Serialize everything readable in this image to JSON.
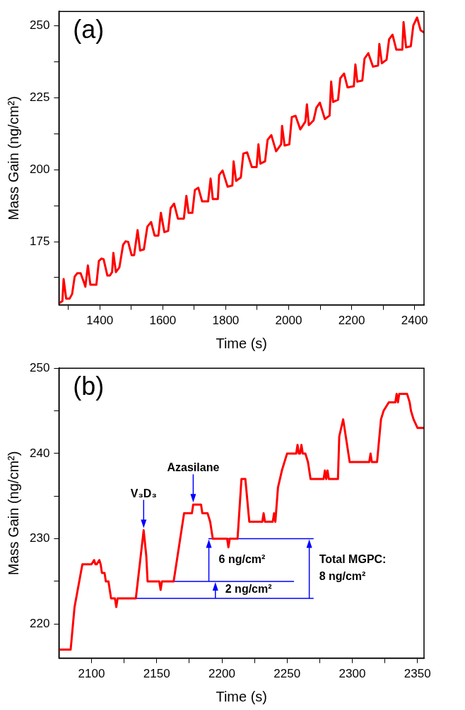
{
  "chart_data": [
    {
      "type": "line",
      "title": "(a)",
      "xlabel": "Time (s)",
      "ylabel": "Mass Gain (ng/cm²)",
      "xlim": [
        1270,
        2430
      ],
      "ylim": [
        153,
        255
      ],
      "xticks": [
        {
          "value": 1300,
          "label": null
        },
        1400,
        {
          "value": 1500,
          "label": null
        },
        1600,
        {
          "value": 1700,
          "label": null
        },
        1800,
        {
          "value": 1900,
          "label": null
        },
        2000,
        {
          "value": 2100,
          "label": null
        },
        2200,
        {
          "value": 2300,
          "label": null
        },
        2400
      ],
      "yticks": [
        {
          "value": 162.5,
          "label": null
        },
        175,
        {
          "value": 187.5,
          "label": null
        },
        200,
        {
          "value": 212.5,
          "label": null
        },
        225,
        {
          "value": 237.5,
          "label": null
        },
        250
      ],
      "grid": false,
      "legend": false,
      "marker": "none",
      "line_style": "solid",
      "series": [
        {
          "color": "#ff0000",
          "x": [
            1270,
            1281,
            1285,
            1293,
            1304,
            1312,
            1320,
            1328,
            1339,
            1351,
            1354,
            1362,
            1370,
            1389,
            1397,
            1405,
            1412,
            1424,
            1432,
            1439,
            1443,
            1451,
            1462,
            1474,
            1482,
            1490,
            1501,
            1509,
            1520,
            1528,
            1540,
            1551,
            1563,
            1574,
            1586,
            1594,
            1605,
            1617,
            1625,
            1636,
            1648,
            1667,
            1675,
            1682,
            1694,
            1702,
            1713,
            1725,
            1744,
            1752,
            1759,
            1775,
            1779,
            1790,
            1806,
            1821,
            1825,
            1833,
            1848,
            1856,
            1868,
            1883,
            1898,
            1904,
            1910,
            1925,
            1933,
            1945,
            1960,
            1976,
            1979,
            1987,
            2002,
            2010,
            2022,
            2037,
            2053,
            2058,
            2064,
            2079,
            2088,
            2099,
            2115,
            2130,
            2135,
            2141,
            2157,
            2164,
            2176,
            2187,
            2207,
            2212,
            2218,
            2234,
            2241,
            2253,
            2268,
            2284,
            2288,
            2296,
            2311,
            2319,
            2330,
            2342,
            2361,
            2365,
            2373,
            2388,
            2396,
            2408,
            2419,
            2430
          ],
          "values": [
            153.6,
            154.3,
            162,
            155.2,
            155.2,
            156.8,
            162.8,
            164,
            164,
            160.4,
            159.3,
            166.7,
            160,
            160,
            168.3,
            169.1,
            168.9,
            163.2,
            163.2,
            164.4,
            171.1,
            164.4,
            166,
            173.9,
            175.1,
            174.9,
            170.3,
            170.3,
            179,
            171.9,
            172.3,
            180.2,
            181.8,
            177.1,
            177.1,
            185,
            178.3,
            178.7,
            186.6,
            188.2,
            183,
            183,
            190.9,
            185,
            185,
            192.9,
            193.7,
            189,
            189,
            196.9,
            189.8,
            189.8,
            198.1,
            199.7,
            194.1,
            194.5,
            202.9,
            196.1,
            197.3,
            205.6,
            206,
            200.9,
            200.9,
            208.8,
            202.1,
            202.9,
            210.4,
            212,
            206.4,
            208.8,
            215.2,
            208.4,
            208.8,
            218.3,
            218.7,
            214,
            216.7,
            222.7,
            215.5,
            217.1,
            221.5,
            223.3,
            217.6,
            218.8,
            230.6,
            223.5,
            224.3,
            231.8,
            233.4,
            228.6,
            229,
            236.6,
            230.6,
            231,
            238.6,
            240.5,
            235.8,
            236.2,
            243.7,
            237,
            238.2,
            245.3,
            246.9,
            241.7,
            241.7,
            251.3,
            242.5,
            242.9,
            250.1,
            252.9,
            248.5,
            247.7
          ]
        }
      ]
    },
    {
      "type": "line",
      "title": "(b)",
      "xlabel": "Time (s)",
      "ylabel": "Mass Gain (ng/cm²)",
      "xlim": [
        2075,
        2355
      ],
      "ylim": [
        216,
        250
      ],
      "xticks": [
        2100,
        {
          "value": 2125,
          "label": null
        },
        2150,
        {
          "value": 2175,
          "label": null
        },
        2200,
        {
          "value": 2225,
          "label": null
        },
        2250,
        {
          "value": 2275,
          "label": null
        },
        2300,
        {
          "value": 2325,
          "label": null
        },
        2350
      ],
      "yticks": [
        220,
        {
          "value": 225,
          "label": null
        },
        230,
        {
          "value": 235,
          "label": null
        },
        240,
        {
          "value": 245,
          "label": null
        },
        250
      ],
      "grid": false,
      "legend": false,
      "marker": "none",
      "line_style": "solid",
      "series": [
        {
          "color": "#ff0000",
          "x": [
            2075,
            2084,
            2087,
            2093,
            2100,
            2102,
            2103,
            2104,
            2106,
            2107,
            2108,
            2110,
            2111,
            2113,
            2115,
            2118,
            2119,
            2120,
            2134,
            2137,
            2140,
            2142,
            2143,
            2152,
            2153,
            2154,
            2163,
            2167,
            2170,
            2171,
            2177,
            2178,
            2184,
            2185,
            2189,
            2191,
            2193,
            2204,
            2205,
            2206,
            2212,
            2215,
            2218,
            2221,
            2231,
            2232,
            2233,
            2239,
            2240,
            2241,
            2243,
            2246,
            2250,
            2257,
            2258,
            2259,
            2260,
            2261,
            2262,
            2264,
            2266,
            2268,
            2278,
            2279,
            2280,
            2281,
            2282,
            2289,
            2290,
            2293,
            2296,
            2298,
            2313,
            2314,
            2315,
            2319,
            2322,
            2324,
            2328,
            2333,
            2334,
            2335,
            2336,
            2337,
            2342,
            2344,
            2345,
            2347,
            2350,
            2355
          ],
          "values": [
            217,
            217,
            222,
            227,
            227,
            227.5,
            227,
            227,
            227.5,
            227,
            226,
            226,
            225,
            225,
            223,
            223,
            222,
            223,
            223,
            227,
            231,
            228,
            225,
            225,
            224,
            225,
            225,
            229,
            232,
            233,
            233,
            234,
            234,
            233,
            233,
            232,
            230,
            230,
            229,
            230,
            230,
            237,
            237,
            232,
            232,
            233,
            232,
            232,
            233,
            232,
            236,
            238,
            240,
            240,
            241,
            240,
            240,
            241,
            240,
            240,
            239,
            237,
            237,
            238,
            237,
            238,
            237,
            237,
            242,
            244,
            241,
            239,
            239,
            240,
            239,
            239,
            244,
            245,
            246,
            246,
            247,
            246,
            247,
            247,
            247,
            246,
            245,
            244,
            243,
            243
          ]
        },
        {
          "type": "line",
          "color": "#0000ff",
          "x": [
            2134,
            2270
          ],
          "values": [
            223,
            223
          ]
        },
        {
          "type": "line",
          "color": "#0000ff",
          "x": [
            2163,
            2255
          ],
          "values": [
            225,
            225
          ]
        },
        {
          "type": "line",
          "color": "#0000ff",
          "x": [
            2190,
            2270
          ],
          "values": [
            230,
            230
          ]
        }
      ],
      "annotations": [
        {
          "text": "V₃D₃",
          "x": 2140,
          "y": 231
        },
        {
          "text": "Azasilane",
          "x": 2178,
          "y": 234
        },
        {
          "text": "6 ng/cm²",
          "x": 2190,
          "y": 230
        },
        {
          "text": "2 ng/cm²",
          "x": 2195,
          "y": 225
        },
        {
          "text": "Total MGPC:\n8 ng/cm²",
          "x": 2267,
          "y": 230
        }
      ]
    }
  ]
}
